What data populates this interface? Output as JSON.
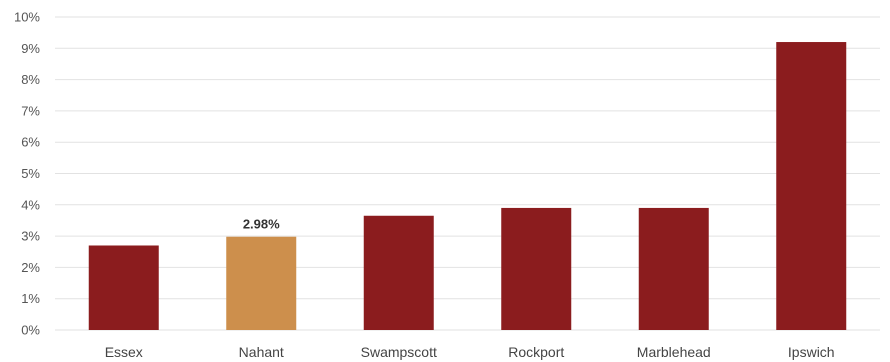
{
  "chart_data": {
    "type": "bar",
    "title": "",
    "xlabel": "",
    "ylabel": "",
    "categories": [
      "Essex",
      "Nahant",
      "Swampscott",
      "Rockport",
      "Marblehead",
      "Ipswich"
    ],
    "values": [
      2.7,
      2.98,
      3.65,
      3.9,
      3.9,
      9.2
    ],
    "ylim": [
      0,
      10
    ],
    "yticks": [
      0,
      1,
      2,
      3,
      4,
      5,
      6,
      7,
      8,
      9,
      10
    ],
    "ytick_suffix": "%",
    "grid": true,
    "colors": {
      "default": "#8b1c1e",
      "highlight": "#cd8f4c"
    },
    "highlight_index": 1,
    "data_labels": [
      {
        "index": 1,
        "text": "2.98%"
      }
    ]
  }
}
